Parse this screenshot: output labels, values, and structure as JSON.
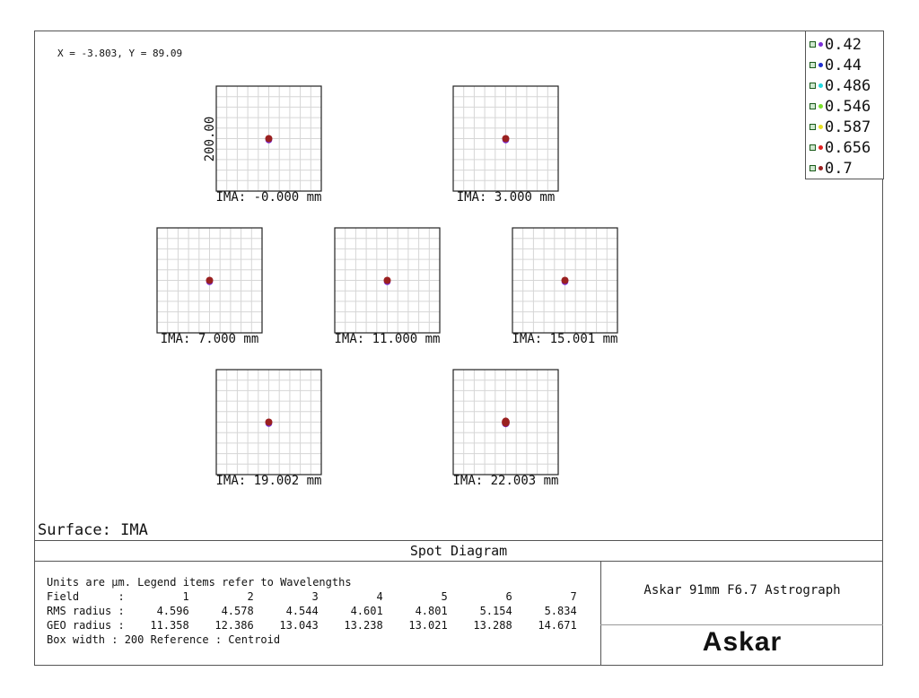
{
  "coord_readout": "X = -3.803, Y = 89.09",
  "surface_label": "Surface: IMA",
  "title": "Spot Diagram",
  "info": {
    "line1": "Units are µm. Legend items refer to Wavelengths",
    "field_label": "Field      :",
    "rms_label": "RMS radius :",
    "geo_label": "GEO radius :",
    "box_line": "Box width  : 200     Reference  : Centroid"
  },
  "description": "Askar 91mm F6.7 Astrograph",
  "logo_text": "Askar",
  "chart_data": {
    "type": "scatter",
    "title": "Spot Diagram",
    "box_width_um": 200,
    "scale_label": "200.00",
    "reference": "Centroid",
    "units": "µm",
    "legend": [
      {
        "label": "0.42",
        "color": "#7b2fd8"
      },
      {
        "label": "0.44",
        "color": "#1f2fd0"
      },
      {
        "label": "0.486",
        "color": "#22d8e0"
      },
      {
        "label": "0.546",
        "color": "#7ae02a"
      },
      {
        "label": "0.587",
        "color": "#e8e020"
      },
      {
        "label": "0.656",
        "color": "#e02020"
      },
      {
        "label": "0.7",
        "color": "#9a2020"
      }
    ],
    "fields": [
      {
        "number": "1",
        "label": "IMA: -0.000 mm",
        "rms": "4.596",
        "geo": "11.358"
      },
      {
        "number": "2",
        "label": "IMA: 3.000 mm",
        "rms": "4.578",
        "geo": "12.386"
      },
      {
        "number": "3",
        "label": "IMA: 7.000 mm",
        "rms": "4.544",
        "geo": "13.043"
      },
      {
        "number": "4",
        "label": "IMA: 11.000 mm",
        "rms": "4.601",
        "geo": "13.238"
      },
      {
        "number": "5",
        "label": "IMA: 15.001 mm",
        "rms": "4.801",
        "geo": "13.021"
      },
      {
        "number": "6",
        "label": "IMA: 19.002 mm",
        "rms": "5.154",
        "geo": "13.288"
      },
      {
        "number": "7",
        "label": "IMA: 22.003 mm",
        "rms": "5.834",
        "geo": "14.671"
      }
    ]
  }
}
